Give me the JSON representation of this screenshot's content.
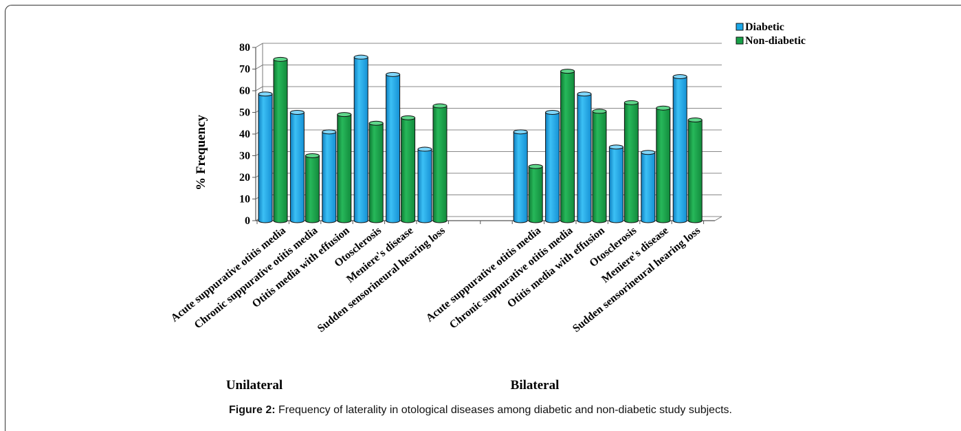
{
  "chart_data": {
    "type": "bar",
    "ylabel": "% Frequency",
    "ylim": [
      0,
      80
    ],
    "yticks": [
      0,
      10,
      20,
      30,
      40,
      50,
      60,
      70,
      80
    ],
    "legend_position": "top-right",
    "grid": true,
    "groups": [
      {
        "label": "Unilateral",
        "categories": [
          "Acute suppurative otitis media",
          "Chronic suppurative otitis media",
          "Otitis media with effusion",
          "Otosclerosis",
          "Meniere's disease",
          "Sudden sensorineural hearing loss"
        ],
        "series": [
          {
            "name": "Diabetic",
            "values": [
              58.5,
              50,
              41,
              75.5,
              67.5,
              33
            ]
          },
          {
            "name": "Non-diabetic",
            "values": [
              74.5,
              30,
              49,
              45,
              47.5,
              53
            ]
          }
        ]
      },
      {
        "label": "Bilateral",
        "categories": [
          "Acute suppurative otitis media",
          "Chronic suppurative otitis media",
          "Otitis media with effusion",
          "Otosclerosis",
          "Meniere's disease",
          "Sudden sensorineural hearing loss"
        ],
        "series": [
          {
            "name": "Diabetic",
            "values": [
              41,
              50,
              58.5,
              34,
              31.5,
              66.5
            ]
          },
          {
            "name": "Non-diabetic",
            "values": [
              25,
              69,
              50.5,
              54.5,
              52,
              46.5
            ]
          }
        ]
      }
    ],
    "colors": {
      "Diabetic": "#1aa7e8",
      "Non-diabetic": "#17a047"
    }
  },
  "caption": {
    "label": "Figure 2:",
    "text": " Frequency of laterality in otological diseases among diabetic and non-diabetic study subjects."
  }
}
